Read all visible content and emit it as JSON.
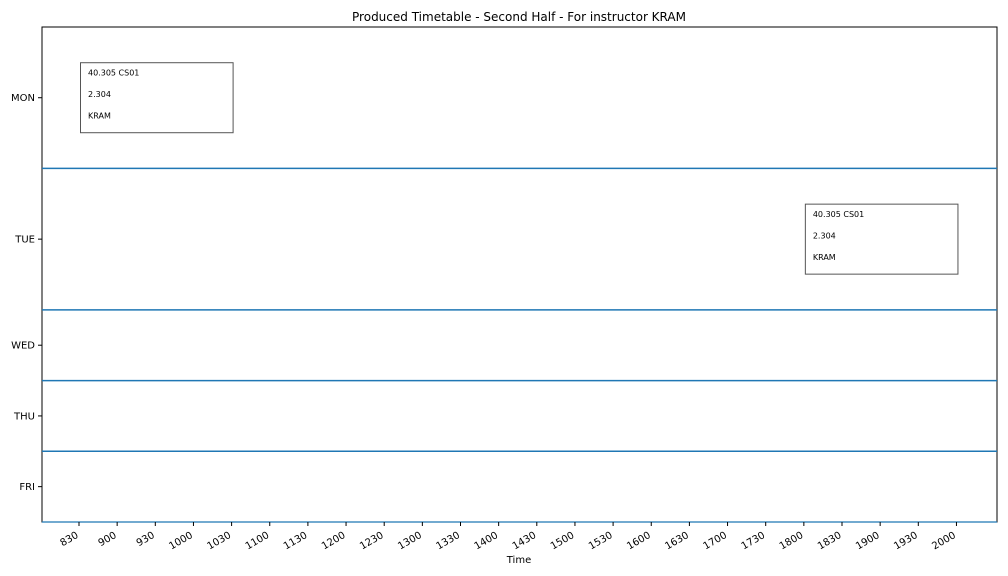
{
  "chart_data": {
    "type": "timetable",
    "title": "Produced Timetable - Second Half - For instructor KRAM",
    "xlabel": "Time",
    "ylabel": "",
    "days": [
      "MON",
      "TUE",
      "WED",
      "THU",
      "FRI"
    ],
    "x_ticks": [
      "830",
      "900",
      "930",
      "1000",
      "1030",
      "1100",
      "1130",
      "1200",
      "1230",
      "1300",
      "1330",
      "1400",
      "1430",
      "1500",
      "1530",
      "1600",
      "1630",
      "1700",
      "1730",
      "1800",
      "1830",
      "1900",
      "1930",
      "2000"
    ],
    "grid": false,
    "sessions": [
      {
        "day": "MON",
        "start": "830",
        "end": "1030",
        "lines": [
          "40.305 CS01",
          "2.304",
          "KRAM"
        ]
      },
      {
        "day": "TUE",
        "start": "1800",
        "end": "2000",
        "lines": [
          "40.305 CS01",
          "2.304",
          "KRAM"
        ]
      }
    ],
    "colors": {
      "separator": "#1f77b4",
      "box_border": "#555555"
    }
  }
}
